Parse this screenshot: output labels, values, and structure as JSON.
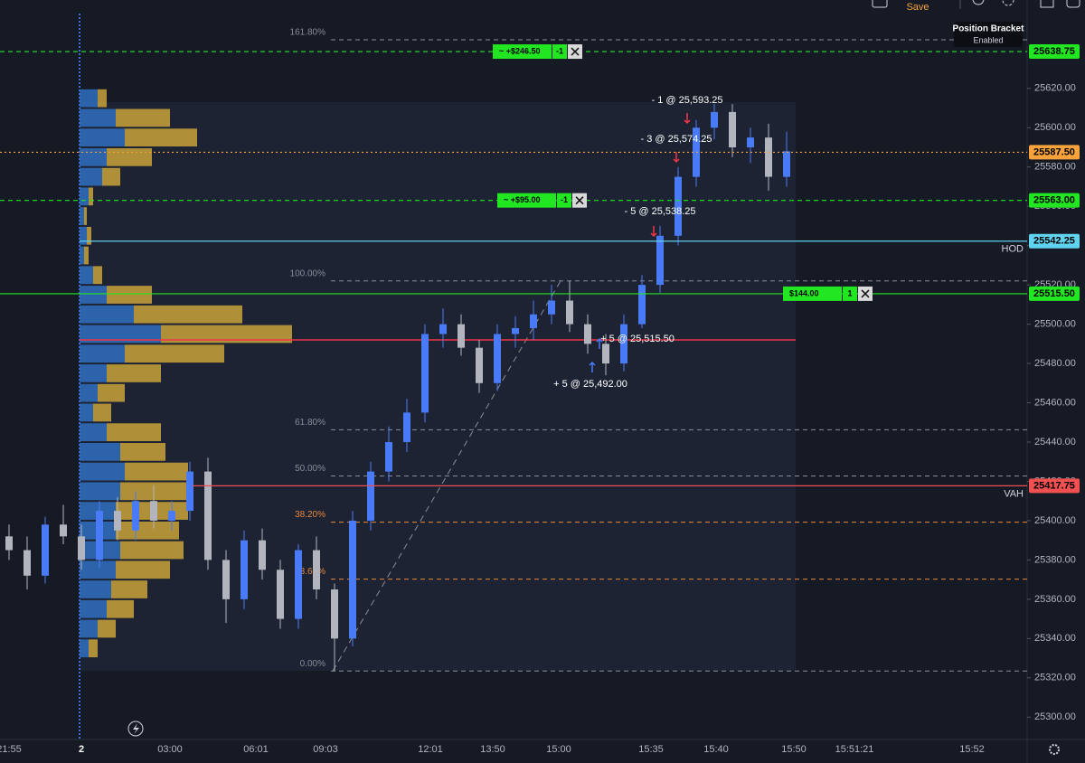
{
  "toolbar": {
    "save": "Save",
    "position_bracket": "Position Bracket",
    "bracket_status": "Enabled"
  },
  "chart_data": {
    "type": "candlestick",
    "ylim": [
      25290,
      25665
    ],
    "yticks": [
      {
        "value": 25620,
        "label": "25620.00"
      },
      {
        "value": 25600,
        "label": "25600.00"
      },
      {
        "value": 25580,
        "label": "25580.00"
      },
      {
        "value": 25560,
        "label": "25560.00"
      },
      {
        "value": 25540,
        "label": "25540.00"
      },
      {
        "value": 25520,
        "label": "25520.00"
      },
      {
        "value": 25500,
        "label": "25500.00"
      },
      {
        "value": 25480,
        "label": "25480.00"
      },
      {
        "value": 25460,
        "label": "25460.00"
      },
      {
        "value": 25440,
        "label": "25440.00"
      },
      {
        "value": 25420,
        "label": "25420.00"
      },
      {
        "value": 25400,
        "label": "25400.00"
      },
      {
        "value": 25380,
        "label": "25380.00"
      },
      {
        "value": 25360,
        "label": "25360.00"
      },
      {
        "value": 25340,
        "label": "25340.00"
      },
      {
        "value": 25320,
        "label": "25320.00"
      },
      {
        "value": 25300,
        "label": "25300.00"
      }
    ],
    "time_labels": [
      "21:55",
      "2",
      "03:00",
      "06:01",
      "09:03",
      "12:01",
      "13:50",
      "15:00",
      "15:35",
      "15:40",
      "15:50",
      "15:51:21",
      "15:52"
    ],
    "up_color": "#4a7bf7",
    "down_color": "#b2b5be",
    "open": [
      25392,
      25385,
      25372,
      25398,
      25392,
      25380,
      25405,
      25395,
      25410,
      25400,
      25405,
      25425,
      25380,
      25360,
      25390,
      25375,
      25350,
      25385,
      25365,
      25340,
      25400,
      25425,
      25440,
      25455,
      25495,
      25500,
      25488,
      25470,
      25495,
      25498,
      25505,
      25512,
      25500,
      25490,
      25480,
      25500,
      25520,
      25545,
      25575,
      25600,
      25608,
      25590,
      25595,
      25575
    ],
    "high": [
      25398,
      25392,
      25402,
      25408,
      25398,
      25410,
      25412,
      25415,
      25418,
      25410,
      25430,
      25432,
      25385,
      25395,
      25396,
      25380,
      25388,
      25392,
      25368,
      25405,
      25430,
      25448,
      25462,
      25500,
      25508,
      25505,
      25492,
      25500,
      25504,
      25512,
      25520,
      25522,
      25505,
      25495,
      25505,
      25525,
      25550,
      25580,
      25604,
      25612,
      25612,
      25600,
      25602,
      25598
    ],
    "low": [
      25380,
      25365,
      25368,
      25388,
      25375,
      25376,
      25390,
      25390,
      25396,
      25395,
      25400,
      25375,
      25348,
      25355,
      25370,
      25345,
      25345,
      25360,
      25323.5,
      25336,
      25395,
      25420,
      25435,
      25450,
      25488,
      25484,
      25465,
      25466,
      25488,
      25492,
      25500,
      25496,
      25485,
      25474,
      25476,
      25498,
      25516,
      25540,
      25570,
      25594,
      25585,
      25582,
      25568,
      25570
    ],
    "close": [
      25385,
      25372,
      25398,
      25392,
      25380,
      25405,
      25395,
      25410,
      25400,
      25405,
      25425,
      25380,
      25360,
      25390,
      25375,
      25350,
      25385,
      25365,
      25340,
      25400,
      25425,
      25440,
      25455,
      25495,
      25500,
      25488,
      25470,
      25495,
      25498,
      25505,
      25512,
      25500,
      25490,
      25480,
      25500,
      25520,
      25545,
      25575,
      25600,
      25608,
      25590,
      25595,
      25575,
      25588
    ],
    "profile": {
      "prices": [
        25615,
        25605,
        25595,
        25585,
        25575,
        25565,
        25555,
        25545,
        25535,
        25525,
        25515,
        25505,
        25495,
        25485,
        25475,
        25465,
        25455,
        25445,
        25435,
        25425,
        25415,
        25405,
        25395,
        25385,
        25375,
        25365,
        25355,
        25345,
        25335
      ],
      "series": [
        {
          "name": "Sell",
          "color": "#2f6fbf",
          "values": [
            20,
            40,
            50,
            30,
            25,
            10,
            5,
            8,
            5,
            15,
            30,
            60,
            90,
            50,
            30,
            20,
            15,
            30,
            45,
            50,
            45,
            40,
            40,
            45,
            40,
            35,
            30,
            20,
            10
          ]
        },
        {
          "name": "Buy",
          "color": "#c9a23a",
          "values": [
            10,
            60,
            80,
            50,
            20,
            5,
            3,
            5,
            5,
            10,
            50,
            120,
            145,
            110,
            60,
            30,
            20,
            60,
            50,
            70,
            80,
            80,
            70,
            70,
            60,
            40,
            30,
            20,
            10
          ]
        }
      ],
      "poc": 25492
    },
    "levels": [
      {
        "value": 25638.75,
        "label": "25638.75",
        "color": "#22e622",
        "style": "dashed",
        "order": {
          "pnl": "~ +$246.50",
          "qty": -1
        }
      },
      {
        "value": 25587.5,
        "label": "25587.50",
        "color": "#f7a23b",
        "style": "dotted"
      },
      {
        "value": 25563,
        "label": "25563.00",
        "color": "#22e622",
        "style": "dashed",
        "order": {
          "pnl": "~ +$95.00",
          "qty": -1
        }
      },
      {
        "value": 25542.25,
        "label": "25542.25",
        "color": "#5fd3f0",
        "style": "solid",
        "note": "HOD"
      },
      {
        "value": 25515.5,
        "label": "25515.50",
        "color": "#22e622",
        "style": "solid",
        "order": {
          "pnl": "$144.00",
          "qty": 1
        }
      },
      {
        "value": 25417.75,
        "label": "25417.75",
        "color": "#f05050",
        "style": "solid",
        "note": "VAH"
      }
    ],
    "fib": [
      {
        "ratio": "161.80%",
        "price": 25644.75,
        "color": "#8a8d96"
      },
      {
        "ratio": "100.00%",
        "price": 25522,
        "color": "#8a8d96"
      },
      {
        "ratio": "61.80%",
        "price": 25446.25,
        "color": "#8a8d96"
      },
      {
        "ratio": "50.00%",
        "price": 25422.75,
        "color": "#8a8d96"
      },
      {
        "ratio": "38.20%",
        "price": 25399.25,
        "color": "#e8893a"
      },
      {
        "ratio": "23.60%",
        "price": 25370.25,
        "color": "#e8893a"
      },
      {
        "ratio": "0.00%",
        "price": 25323.5,
        "color": "#8a8d96"
      }
    ],
    "trades": [
      {
        "text": "- 1 @ 25,593.25",
        "price": 25593.25,
        "side": "sell"
      },
      {
        "text": "- 3 @ 25,574.25",
        "price": 25574.25,
        "side": "sell"
      },
      {
        "text": "- 5 @ 25,538.25",
        "price": 25538.25,
        "side": "sell"
      },
      {
        "text": "+ 5 @ 25,515.50",
        "price": 25515.5,
        "side": "buy"
      },
      {
        "text": "+ 5 @ 25,492.00",
        "price": 25492,
        "side": "buy"
      }
    ]
  }
}
